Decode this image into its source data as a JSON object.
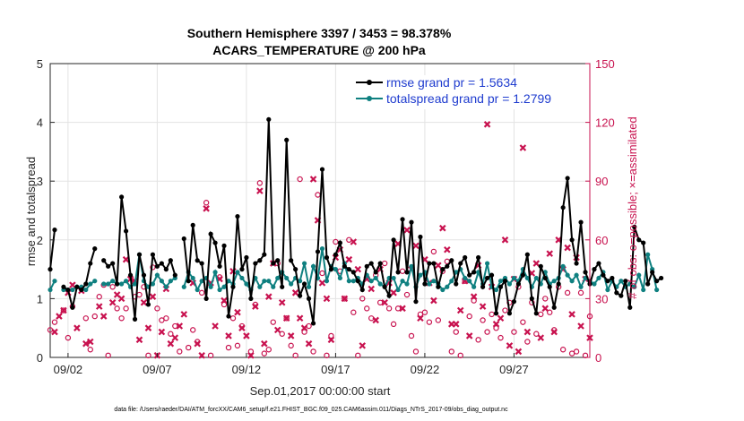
{
  "chart_data": {
    "type": "line",
    "title": [
      "Southern Hemisphere 3397 / 3453 = 98.378%",
      "ACARS_TEMPERATURE @ 200 hPa"
    ],
    "xlabel": "Sep.01,2017 00:00:00 start",
    "ylabel": "rmse and totalspread",
    "ylabel_right": "# of obs: o=possible; ×=assimilated",
    "xlim": [
      1.0,
      31.25
    ],
    "ylim": [
      0,
      5
    ],
    "ylim_right": [
      0,
      150
    ],
    "x_tick_values": [
      2,
      7,
      12,
      17,
      22,
      27
    ],
    "x_tick_labels": [
      "09/02",
      "09/07",
      "09/12",
      "09/17",
      "09/22",
      "09/27"
    ],
    "y_tick_values": [
      0,
      1,
      2,
      3,
      4,
      5
    ],
    "y_tick_labels": [
      "0",
      "1",
      "2",
      "3",
      "4",
      "5"
    ],
    "y_right_tick_values": [
      0,
      30,
      60,
      90,
      120,
      150
    ],
    "y_right_tick_labels": [
      "0",
      "30",
      "60",
      "90",
      "120",
      "150"
    ],
    "grid": true,
    "legend_position": "top-right",
    "series": [
      {
        "name": "rmse grand pr = 1.5634",
        "color": "#000000",
        "axis": "left",
        "values": [
          1.5,
          2.17,
          null,
          1.2,
          1.15,
          0.85,
          1.2,
          1.15,
          1.25,
          1.6,
          1.85,
          null,
          1.65,
          1.55,
          1.6,
          1.25,
          2.73,
          2.15,
          1.4,
          0.65,
          1.75,
          1.4,
          0.9,
          1.75,
          1.55,
          1.6,
          1.5,
          1.65,
          1.4,
          null,
          2.02,
          1.3,
          2.25,
          1.65,
          1.6,
          1.0,
          2.1,
          1.95,
          1.55,
          1.9,
          0.7,
          1.2,
          2.4,
          1.5,
          1.7,
          1.0,
          1.6,
          1.65,
          1.75,
          4.05,
          1.6,
          1.65,
          1.2,
          3.7,
          1.65,
          1.5,
          1.05,
          1.25,
          1.0,
          0.58,
          1.8,
          3.2,
          1.7,
          1.5,
          1.75,
          1.95,
          1.55,
          1.5,
          1.45,
          1.3,
          1.15,
          1.55,
          1.6,
          1.45,
          1.6,
          1.2,
          1.05,
          2.0,
          1.45,
          2.35,
          1.45,
          2.3,
          0.95,
          2.05,
          1.25,
          1.6,
          1.6,
          1.2,
          1.5,
          1.55,
          1.65,
          1.25,
          1.6,
          1.7,
          1.4,
          1.45,
          1.7,
          1.2,
          1.35,
          1.4,
          0.75,
          1.2,
          1.3,
          0.75,
          0.95,
          1.25,
          1.4,
          1.75,
          1.0,
          0.75,
          1.55,
          1.35,
          1.2,
          0.85,
          1.25,
          2.55,
          3.05,
          2.0,
          1.6,
          2.3,
          1.45,
          1.25,
          1.5,
          1.6,
          1.4,
          1.3,
          1.35,
          1.1,
          1.05,
          1.3,
          0.85,
          2.22,
          2.0,
          1.95,
          1.25,
          1.45,
          1.3,
          1.35
        ]
      },
      {
        "name": "totalspread grand pr = 1.2799",
        "color": "#0f8080",
        "axis": "left",
        "values": [
          1.15,
          1.3,
          null,
          1.15,
          1.15,
          1.15,
          1.2,
          1.2,
          1.15,
          1.25,
          1.3,
          null,
          1.25,
          1.25,
          1.3,
          1.25,
          1.25,
          1.3,
          1.2,
          1.25,
          1.75,
          1.3,
          1.2,
          1.25,
          1.4,
          1.3,
          1.2,
          1.3,
          1.35,
          null,
          1.2,
          1.45,
          1.35,
          1.15,
          1.3,
          1.35,
          1.2,
          1.45,
          1.15,
          1.2,
          1.3,
          1.25,
          1.45,
          1.35,
          1.25,
          1.15,
          1.35,
          1.2,
          1.3,
          1.3,
          1.2,
          1.35,
          1.45,
          1.35,
          1.25,
          1.35,
          1.3,
          1.6,
          1.2,
          1.55,
          1.35,
          1.85,
          1.3,
          1.55,
          1.5,
          1.35,
          1.6,
          1.3,
          1.3,
          1.35,
          1.25,
          1.4,
          1.3,
          1.35,
          1.25,
          1.2,
          1.35,
          1.35,
          1.15,
          1.3,
          1.25,
          1.55,
          1.2,
          1.4,
          1.45,
          1.25,
          1.3,
          1.25,
          1.15,
          1.2,
          1.3,
          1.45,
          1.5,
          1.35,
          1.3,
          1.2,
          1.45,
          1.25,
          1.6,
          1.2,
          1.15,
          1.3,
          1.35,
          1.25,
          1.35,
          1.3,
          1.5,
          1.35,
          1.2,
          1.35,
          1.25,
          1.45,
          1.25,
          1.3,
          1.35,
          1.55,
          1.4,
          1.3,
          1.4,
          1.2,
          1.35,
          1.3,
          1.25,
          1.35,
          1.45,
          1.15,
          1.3,
          1.2,
          1.3,
          1.2,
          1.25,
          1.2,
          1.4,
          1.15,
          1.75,
          1.5,
          1.15
        ]
      }
    ],
    "obs_possible": [
      [
        1.0,
        14
      ],
      [
        1.25,
        18
      ],
      [
        1.75,
        24
      ],
      [
        2.0,
        10
      ],
      [
        2.25,
        26
      ],
      [
        2.75,
        35
      ],
      [
        3.0,
        20
      ],
      [
        3.25,
        4
      ],
      [
        3.5,
        21
      ],
      [
        3.75,
        31
      ],
      [
        4.0,
        37
      ],
      [
        4.25,
        1
      ],
      [
        4.5,
        36
      ],
      [
        4.75,
        25
      ],
      [
        5.0,
        20
      ],
      [
        5.25,
        25
      ],
      [
        5.75,
        31
      ],
      [
        6.0,
        32
      ],
      [
        6.25,
        36
      ],
      [
        6.5,
        1
      ],
      [
        6.75,
        46
      ],
      [
        7.0,
        25
      ],
      [
        7.25,
        19
      ],
      [
        7.5,
        20
      ],
      [
        7.75,
        12
      ],
      [
        8.0,
        16
      ],
      [
        8.25,
        3
      ],
      [
        8.75,
        5
      ],
      [
        9.0,
        14
      ],
      [
        9.25,
        8
      ],
      [
        9.5,
        33
      ],
      [
        9.75,
        79
      ],
      [
        10.0,
        1
      ],
      [
        10.5,
        41
      ],
      [
        10.75,
        27
      ],
      [
        11.0,
        5
      ],
      [
        11.25,
        20
      ],
      [
        11.5,
        6
      ],
      [
        11.75,
        16
      ],
      [
        12.25,
        3
      ],
      [
        12.5,
        27
      ],
      [
        12.75,
        89
      ],
      [
        13.0,
        2
      ],
      [
        13.25,
        4
      ],
      [
        13.5,
        18
      ],
      [
        13.75,
        48
      ],
      [
        14.0,
        12
      ],
      [
        14.25,
        20
      ],
      [
        14.5,
        6
      ],
      [
        14.75,
        1
      ],
      [
        15.0,
        91
      ],
      [
        15.25,
        13
      ],
      [
        15.5,
        16
      ],
      [
        15.75,
        3
      ],
      [
        16.0,
        83
      ],
      [
        16.25,
        43
      ],
      [
        16.5,
        1
      ],
      [
        16.75,
        11
      ],
      [
        17.0,
        59
      ],
      [
        17.25,
        44
      ],
      [
        17.5,
        30
      ],
      [
        17.75,
        60
      ],
      [
        18.0,
        23
      ],
      [
        18.25,
        1
      ],
      [
        18.5,
        30
      ],
      [
        18.75,
        25
      ],
      [
        19.0,
        20
      ],
      [
        19.25,
        42
      ],
      [
        19.5,
        28
      ],
      [
        19.75,
        48
      ],
      [
        20.0,
        25
      ],
      [
        20.25,
        17
      ],
      [
        20.5,
        25
      ],
      [
        20.75,
        44
      ],
      [
        21.0,
        32
      ],
      [
        21.25,
        11
      ],
      [
        21.5,
        3
      ],
      [
        21.75,
        22
      ],
      [
        22.0,
        23
      ],
      [
        22.25,
        18
      ],
      [
        22.5,
        54
      ],
      [
        22.75,
        19
      ],
      [
        23.0,
        44
      ],
      [
        23.25,
        49
      ],
      [
        23.5,
        3
      ],
      [
        23.75,
        13
      ],
      [
        24.0,
        1
      ],
      [
        24.25,
        39
      ],
      [
        24.5,
        21
      ],
      [
        24.75,
        29
      ],
      [
        25.0,
        9
      ],
      [
        25.25,
        19
      ],
      [
        25.5,
        13
      ],
      [
        25.75,
        22
      ],
      [
        26.0,
        15
      ],
      [
        26.25,
        10
      ],
      [
        26.5,
        24
      ],
      [
        26.75,
        28
      ],
      [
        27.0,
        13
      ],
      [
        27.25,
        36
      ],
      [
        27.5,
        18
      ],
      [
        27.75,
        8
      ],
      [
        28.0,
        28
      ],
      [
        28.25,
        12
      ],
      [
        28.5,
        22
      ],
      [
        28.75,
        30
      ],
      [
        29.0,
        23
      ],
      [
        29.25,
        14
      ],
      [
        29.5,
        36
      ],
      [
        29.75,
        4
      ],
      [
        30.0,
        33
      ],
      [
        30.25,
        2
      ],
      [
        30.5,
        3
      ],
      [
        30.75,
        33
      ],
      [
        31.0,
        1
      ],
      [
        31.25,
        21
      ]
    ],
    "obs_assimilated": [
      [
        1.25,
        13
      ],
      [
        1.5,
        21
      ],
      [
        1.75,
        24
      ],
      [
        2.0,
        33
      ],
      [
        2.25,
        37
      ],
      [
        2.5,
        15
      ],
      [
        2.75,
        34
      ],
      [
        3.0,
        7
      ],
      [
        3.25,
        8
      ],
      [
        3.75,
        26
      ],
      [
        4.0,
        21
      ],
      [
        4.5,
        28
      ],
      [
        4.75,
        32
      ],
      [
        5.0,
        30
      ],
      [
        5.25,
        50
      ],
      [
        5.5,
        40
      ],
      [
        5.75,
        39
      ],
      [
        6.0,
        9
      ],
      [
        6.25,
        28
      ],
      [
        6.5,
        15
      ],
      [
        6.75,
        31
      ],
      [
        7.0,
        1
      ],
      [
        7.25,
        13
      ],
      [
        7.5,
        35
      ],
      [
        7.75,
        7
      ],
      [
        8.0,
        10
      ],
      [
        8.25,
        16
      ],
      [
        8.5,
        22
      ],
      [
        9.0,
        38
      ],
      [
        9.25,
        7
      ],
      [
        9.5,
        1
      ],
      [
        9.75,
        76
      ],
      [
        10.0,
        38
      ],
      [
        10.25,
        16
      ],
      [
        10.5,
        40
      ],
      [
        10.75,
        29
      ],
      [
        11.0,
        11
      ],
      [
        11.25,
        44
      ],
      [
        11.5,
        23
      ],
      [
        11.75,
        15
      ],
      [
        12.0,
        11
      ],
      [
        12.25,
        1
      ],
      [
        12.5,
        26
      ],
      [
        12.75,
        85
      ],
      [
        13.0,
        7
      ],
      [
        13.25,
        31
      ],
      [
        13.5,
        48
      ],
      [
        13.75,
        14
      ],
      [
        14.0,
        28
      ],
      [
        14.25,
        20
      ],
      [
        14.5,
        11
      ],
      [
        14.75,
        33
      ],
      [
        15.0,
        20
      ],
      [
        15.25,
        15
      ],
      [
        15.5,
        7
      ],
      [
        15.75,
        91
      ],
      [
        16.0,
        70
      ],
      [
        16.25,
        38
      ],
      [
        16.5,
        30
      ],
      [
        16.75,
        9
      ],
      [
        17.0,
        51
      ],
      [
        17.25,
        55
      ],
      [
        17.5,
        30
      ],
      [
        17.75,
        50
      ],
      [
        18.0,
        59
      ],
      [
        18.25,
        45
      ],
      [
        18.5,
        6
      ],
      [
        18.75,
        40
      ],
      [
        19.0,
        35
      ],
      [
        19.25,
        19
      ],
      [
        19.5,
        45
      ],
      [
        19.75,
        28
      ],
      [
        20.0,
        38
      ],
      [
        20.25,
        33
      ],
      [
        20.5,
        58
      ],
      [
        20.75,
        25
      ],
      [
        21.0,
        65
      ],
      [
        21.25,
        45
      ],
      [
        21.5,
        57
      ],
      [
        21.75,
        20
      ],
      [
        22.0,
        50
      ],
      [
        22.25,
        38
      ],
      [
        22.5,
        29
      ],
      [
        22.75,
        47
      ],
      [
        23.0,
        66
      ],
      [
        23.25,
        55
      ],
      [
        23.5,
        17
      ],
      [
        23.75,
        17
      ],
      [
        24.0,
        24
      ],
      [
        24.25,
        39
      ],
      [
        24.5,
        11
      ],
      [
        24.75,
        31
      ],
      [
        25.0,
        47
      ],
      [
        25.25,
        26
      ],
      [
        25.5,
        119
      ],
      [
        25.75,
        36
      ],
      [
        26.0,
        17
      ],
      [
        26.25,
        20
      ],
      [
        26.5,
        60
      ],
      [
        26.75,
        6
      ],
      [
        27.0,
        40
      ],
      [
        27.25,
        3
      ],
      [
        27.5,
        107
      ],
      [
        27.75,
        13
      ],
      [
        28.0,
        43
      ],
      [
        28.25,
        48
      ],
      [
        28.5,
        10
      ],
      [
        28.75,
        25
      ],
      [
        29.0,
        53
      ],
      [
        29.25,
        13
      ],
      [
        29.5,
        60
      ],
      [
        29.75,
        45
      ],
      [
        30.0,
        56
      ],
      [
        30.25,
        22
      ],
      [
        30.5,
        51
      ],
      [
        30.75,
        16
      ],
      [
        31.0,
        40
      ],
      [
        31.25,
        10
      ]
    ]
  },
  "footer": "data file: /Users/raeder/DAI/ATM_forcXX/CAM6_setup/f.e21.FHIST_BGC.f09_025.CAM6assim.011/Diags_NTrS_2017-09/obs_diag_output.nc"
}
